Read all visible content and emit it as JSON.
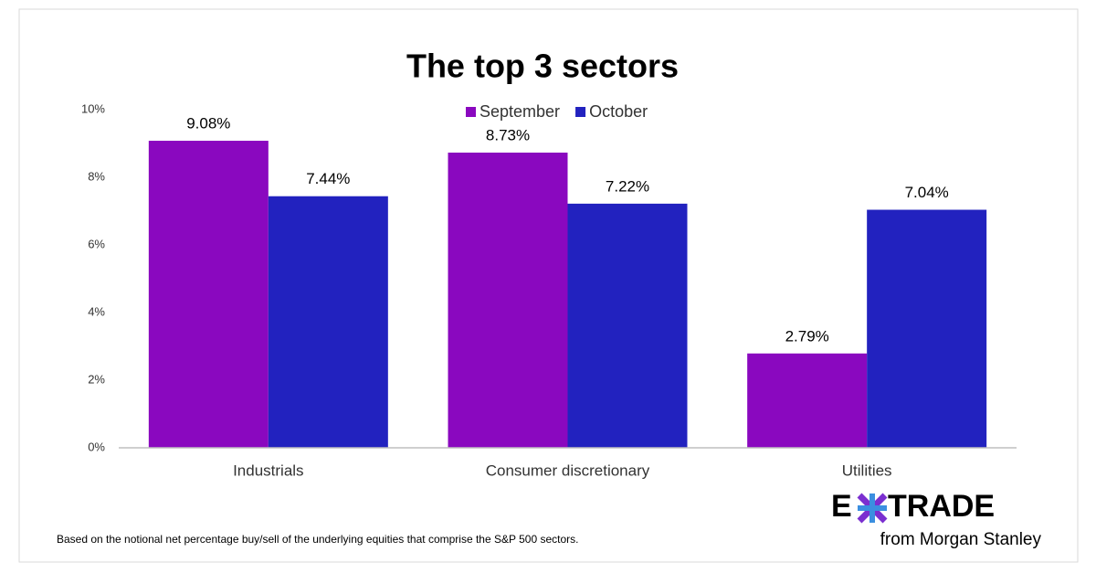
{
  "chart_data": {
    "type": "bar",
    "title": "The top 3 sectors",
    "categories": [
      "Industrials",
      "Consumer discretionary",
      "Utilities"
    ],
    "series": [
      {
        "name": "September",
        "color": "#8a08bf",
        "values": [
          9.08,
          8.73,
          2.79
        ],
        "value_labels": [
          "9.08%",
          "8.73%",
          "2.79%"
        ]
      },
      {
        "name": "October",
        "color": "#2222bf",
        "values": [
          7.44,
          7.22,
          7.04
        ],
        "value_labels": [
          "7.44%",
          "7.22%",
          "7.04%"
        ]
      }
    ],
    "ylim": [
      0,
      10
    ],
    "yticks": [
      {
        "value": 0,
        "label": "0%"
      },
      {
        "value": 2,
        "label": "2%"
      },
      {
        "value": 4,
        "label": "4%"
      },
      {
        "value": 6,
        "label": "6%"
      },
      {
        "value": 8,
        "label": "8%"
      },
      {
        "value": 10,
        "label": "10%"
      }
    ],
    "grid": false,
    "legend": "top"
  },
  "footnote": "Based on the notional net percentage buy/sell of the underlying equities that comprise the S&P 500 sectors.",
  "brand": {
    "left": "E",
    "right": "TRADE",
    "tagline": "from Morgan Stanley"
  }
}
